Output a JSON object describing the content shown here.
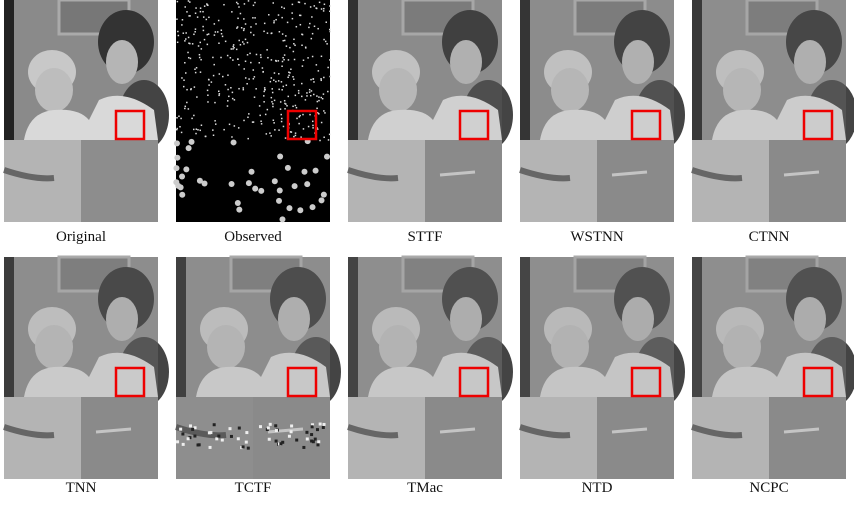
{
  "panels": [
    {
      "label": "Original"
    },
    {
      "label": "Observed"
    },
    {
      "label": "STTF"
    },
    {
      "label": "WSTNN"
    },
    {
      "label": "CTNN"
    },
    {
      "label": "TNN"
    },
    {
      "label": "TCTF"
    },
    {
      "label": "TMac"
    },
    {
      "label": "NTD"
    },
    {
      "label": "NCPC"
    }
  ]
}
